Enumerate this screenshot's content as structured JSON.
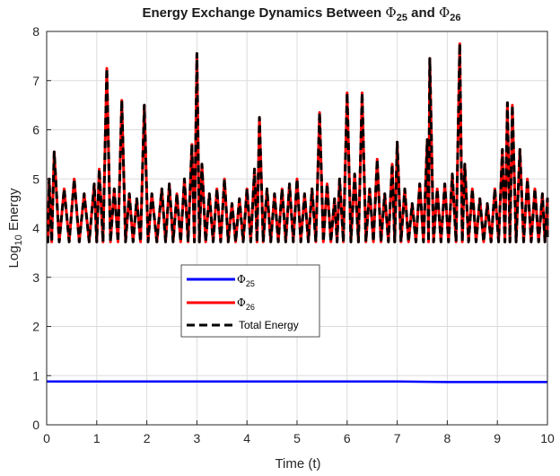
{
  "chart_data": {
    "type": "line",
    "title_prefix": "Energy Exchange Dynamics Between ",
    "title_sym": "Φ",
    "title_sub_a": "25",
    "title_mid": " and ",
    "title_sub_b": "26",
    "xlabel": "Time (t)",
    "ylabel_main": "Log",
    "ylabel_sub": "10",
    "ylabel_rest": " Energy",
    "xlim": [
      0,
      10
    ],
    "ylim": [
      0,
      8
    ],
    "xticks": [
      "0",
      "1",
      "2",
      "3",
      "4",
      "5",
      "6",
      "7",
      "8",
      "9",
      "10"
    ],
    "yticks": [
      "0",
      "1",
      "2",
      "3",
      "4",
      "5",
      "6",
      "7",
      "8"
    ],
    "grid": true,
    "legend_position": "center-left",
    "series": [
      {
        "name_sym": "Φ",
        "name_sub": "25",
        "color": "#0000ff",
        "style": "solid",
        "x": [
          0,
          1,
          2,
          3,
          4,
          5,
          6,
          7,
          8,
          9,
          10
        ],
        "y": [
          0.88,
          0.88,
          0.88,
          0.88,
          0.88,
          0.88,
          0.88,
          0.88,
          0.87,
          0.87,
          0.87
        ]
      },
      {
        "name_sym": "Φ",
        "name_sub": "26",
        "color": "#ff0000",
        "style": "solid",
        "baseline": 3.72,
        "peaks": [
          [
            0.05,
            5.0
          ],
          [
            0.15,
            5.55
          ],
          [
            0.35,
            4.8
          ],
          [
            0.55,
            5.0
          ],
          [
            0.75,
            4.7
          ],
          [
            0.95,
            4.9
          ],
          [
            1.05,
            5.2
          ],
          [
            1.2,
            7.25
          ],
          [
            1.35,
            4.8
          ],
          [
            1.5,
            6.6
          ],
          [
            1.65,
            4.7
          ],
          [
            1.8,
            4.6
          ],
          [
            1.95,
            6.5
          ],
          [
            2.1,
            4.7
          ],
          [
            2.3,
            4.8
          ],
          [
            2.45,
            4.9
          ],
          [
            2.6,
            4.7
          ],
          [
            2.75,
            5.0
          ],
          [
            2.9,
            5.7
          ],
          [
            3.0,
            7.55
          ],
          [
            3.1,
            5.3
          ],
          [
            3.25,
            4.7
          ],
          [
            3.4,
            4.8
          ],
          [
            3.55,
            5.0
          ],
          [
            3.7,
            4.5
          ],
          [
            3.85,
            4.6
          ],
          [
            4.0,
            4.8
          ],
          [
            4.15,
            5.2
          ],
          [
            4.25,
            6.25
          ],
          [
            4.4,
            4.8
          ],
          [
            4.55,
            4.7
          ],
          [
            4.7,
            4.8
          ],
          [
            4.85,
            4.9
          ],
          [
            5.0,
            5.0
          ],
          [
            5.15,
            4.7
          ],
          [
            5.3,
            4.8
          ],
          [
            5.45,
            6.35
          ],
          [
            5.6,
            4.9
          ],
          [
            5.75,
            4.6
          ],
          [
            5.85,
            5.0
          ],
          [
            6.0,
            6.75
          ],
          [
            6.15,
            5.1
          ],
          [
            6.3,
            6.75
          ],
          [
            6.45,
            4.8
          ],
          [
            6.6,
            5.4
          ],
          [
            6.75,
            4.7
          ],
          [
            6.9,
            5.3
          ],
          [
            7.0,
            5.75
          ],
          [
            7.15,
            4.8
          ],
          [
            7.3,
            4.5
          ],
          [
            7.45,
            4.9
          ],
          [
            7.6,
            5.8
          ],
          [
            7.65,
            7.45
          ],
          [
            7.8,
            4.8
          ],
          [
            7.95,
            4.9
          ],
          [
            8.1,
            5.1
          ],
          [
            8.25,
            7.75
          ],
          [
            8.35,
            5.3
          ],
          [
            8.5,
            4.8
          ],
          [
            8.65,
            4.6
          ],
          [
            8.8,
            4.5
          ],
          [
            8.95,
            4.8
          ],
          [
            9.1,
            5.6
          ],
          [
            9.2,
            6.55
          ],
          [
            9.3,
            6.5
          ],
          [
            9.45,
            5.6
          ],
          [
            9.6,
            5.0
          ],
          [
            9.75,
            4.8
          ],
          [
            9.9,
            4.7
          ],
          [
            10.0,
            4.6
          ]
        ]
      },
      {
        "name": "Total Energy",
        "color": "#000000",
        "style": "dashed"
      }
    ]
  }
}
